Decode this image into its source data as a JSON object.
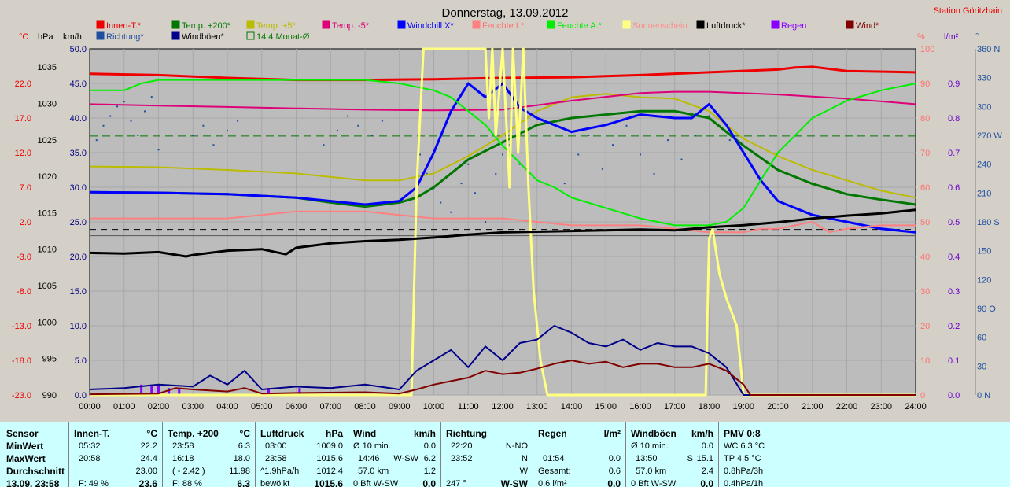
{
  "title": "Donnerstag, 13.09.2012",
  "station": "Station Göritzhain",
  "legend": [
    {
      "label": "Innen-T.*",
      "color": "#ee0000"
    },
    {
      "label": "Temp. +200*",
      "color": "#007700"
    },
    {
      "label": "Temp. +5*",
      "color": "#bbbb00"
    },
    {
      "label": "Temp. -5*",
      "color": "#dd0077"
    },
    {
      "label": "Windchill X*",
      "color": "#0000ff"
    },
    {
      "label": "Feuchte I.*",
      "color": "#ff8080"
    },
    {
      "label": "Feuchte A.*",
      "color": "#00ee00"
    },
    {
      "label": "Sonnenschein",
      "color": "#ffff80"
    },
    {
      "label": "Luftdruck*",
      "color": "#000000"
    },
    {
      "label": "Regen",
      "color": "#8800ff"
    },
    {
      "label": "Wind*",
      "color": "#800000"
    },
    {
      "label": "Richtung*",
      "color": "#1f4f9f"
    },
    {
      "label": "Windböen*",
      "color": "#000088"
    },
    {
      "label": "14.4 Monat-Ø",
      "color": "#007700"
    }
  ],
  "axes_units": {
    "temp": "°C",
    "press": "hPa",
    "wind": "km/h",
    "hum": "%",
    "rain": "l/m²",
    "dir": "°"
  },
  "chart_data": {
    "type": "line",
    "x_ticks": [
      "00:00",
      "01:00",
      "02:00",
      "03:00",
      "04:00",
      "05:00",
      "06:00",
      "07:00",
      "08:00",
      "09:00",
      "10:00",
      "11:00",
      "12:00",
      "13:00",
      "14:00",
      "15:00",
      "16:00",
      "17:00",
      "18:00",
      "19:00",
      "20:00",
      "21:00",
      "22:00",
      "23:00",
      "24:00"
    ],
    "x_range_hours": [
      0,
      24
    ],
    "axes": {
      "temp": {
        "range": [
          -23,
          27
        ],
        "ticks": [
          "22.0",
          "17.0",
          "12.0",
          "7.0",
          "2.0",
          "-3.0",
          "-8.0",
          "-13.0",
          "-18.0",
          "-23.0"
        ]
      },
      "pressure": {
        "range": [
          990,
          1037.5
        ],
        "ticks": [
          "1035",
          "1030",
          "1025",
          "1020",
          "1015",
          "1010",
          "1005",
          "1000",
          "995",
          "990"
        ]
      },
      "wind": {
        "range": [
          0,
          50
        ],
        "ticks": [
          "50.0",
          "45.0",
          "40.0",
          "35.0",
          "30.0",
          "25.0",
          "20.0",
          "15.0",
          "10.0",
          "5.0",
          "0.0"
        ]
      },
      "humidity": {
        "range": [
          0,
          100
        ],
        "ticks": [
          "100",
          "90",
          "80",
          "70",
          "60",
          "50",
          "40",
          "30",
          "20",
          "10",
          "0"
        ]
      },
      "rain": {
        "range": [
          0,
          1.0
        ],
        "ticks": [
          "0.9",
          "0.8",
          "0.7",
          "0.6",
          "0.5",
          "0.4",
          "0.3",
          "0.2",
          "0.1",
          "0.0"
        ]
      },
      "direction": {
        "range": [
          0,
          360
        ],
        "ticks": [
          "360 N",
          "330",
          "300",
          "270 W",
          "240",
          "210",
          "180 S",
          "150",
          "120",
          "90 O",
          "60",
          "30",
          "0 N"
        ]
      }
    },
    "grid": true,
    "reference_lines": [
      {
        "name": "14.4 Monat-Ø",
        "axis": "temp",
        "value": 14.4
      }
    ],
    "series": [
      {
        "name": "Innen-T.*",
        "axis": "temp",
        "color": "#ee0000",
        "x": [
          0,
          2,
          4,
          6,
          8,
          10,
          12,
          14,
          16,
          18,
          20,
          20.5,
          21,
          22,
          24
        ],
        "values": [
          23.4,
          23.2,
          22.8,
          22.5,
          22.5,
          22.6,
          22.8,
          22.9,
          23.2,
          23.6,
          24.0,
          24.3,
          24.4,
          23.8,
          23.6
        ]
      },
      {
        "name": "Temp. +200*",
        "axis": "temp",
        "color": "#007700",
        "x": [
          0,
          2,
          4,
          6,
          7,
          8,
          9,
          9.5,
          10,
          10.5,
          11,
          12,
          13,
          14,
          15,
          16,
          17,
          18,
          19,
          20,
          21,
          22,
          23,
          24
        ],
        "values": [
          6.3,
          6.2,
          6.0,
          5.5,
          4.8,
          4.2,
          4.8,
          5.5,
          7.0,
          9.0,
          11.0,
          13.5,
          16.0,
          17.0,
          17.5,
          18.0,
          18.0,
          17.0,
          13.0,
          9.5,
          7.5,
          6.0,
          5.2,
          4.5
        ]
      },
      {
        "name": "Temp. +5*",
        "axis": "temp",
        "color": "#bbbb00",
        "x": [
          0,
          2,
          4,
          6,
          8,
          9,
          10,
          11,
          12,
          13,
          14,
          15,
          16,
          17,
          18,
          19,
          20,
          21,
          22,
          23,
          24
        ],
        "values": [
          10.0,
          9.9,
          9.5,
          9.0,
          8.0,
          8.0,
          9.0,
          11.5,
          14.5,
          18.0,
          20.0,
          20.5,
          20.0,
          19.8,
          18.0,
          14.0,
          11.5,
          9.5,
          8.0,
          6.5,
          5.5
        ]
      },
      {
        "name": "Temp. -5*",
        "axis": "temp",
        "color": "#dd0077",
        "x": [
          0,
          2,
          4,
          6,
          8,
          10,
          12,
          14,
          16,
          17,
          18,
          20,
          22,
          24
        ],
        "values": [
          19.0,
          18.8,
          18.6,
          18.4,
          18.2,
          18.1,
          18.2,
          19.5,
          20.6,
          20.8,
          20.8,
          20.4,
          19.8,
          19.0
        ]
      },
      {
        "name": "Windchill X*",
        "axis": "temp",
        "color": "#0000ff",
        "x": [
          0,
          2,
          4,
          6,
          8,
          9,
          9.5,
          10,
          10.5,
          11,
          11.5,
          12,
          12.5,
          13,
          14,
          15,
          16,
          17,
          17.5,
          18,
          18.5,
          19,
          19.5,
          20,
          21,
          22,
          23,
          24
        ],
        "values": [
          6.3,
          6.2,
          6.0,
          5.5,
          4.5,
          5.0,
          7.0,
          12.0,
          18.0,
          22.0,
          20.0,
          22.0,
          18.5,
          17.0,
          15.0,
          16.0,
          17.5,
          17.0,
          17.0,
          19.0,
          16.0,
          12.0,
          8.0,
          5.0,
          3.0,
          2.0,
          1.0,
          0.5
        ]
      },
      {
        "name": "Feuchte I.*",
        "axis": "humidity",
        "color": "#ff8080",
        "x": [
          0,
          2,
          4,
          5,
          6,
          7,
          8,
          9,
          10,
          11,
          12,
          13,
          14,
          15,
          16,
          17,
          18,
          19,
          19.5,
          20,
          20.5,
          21,
          21.5,
          22,
          23,
          24
        ],
        "values": [
          51,
          51,
          51,
          52,
          53,
          53,
          53,
          52,
          51,
          51,
          51,
          50,
          49,
          49,
          49,
          48,
          47,
          47,
          48,
          48,
          49,
          50,
          47,
          48,
          49,
          49
        ]
      },
      {
        "name": "Feuchte A.*",
        "axis": "humidity",
        "color": "#00ee00",
        "x": [
          0,
          1,
          1.5,
          2,
          4,
          6,
          8,
          9,
          10,
          10.5,
          11,
          11.5,
          12,
          12.5,
          13,
          13.5,
          14,
          15,
          16,
          17,
          18,
          18.5,
          19,
          19.5,
          20,
          21,
          22,
          23,
          24
        ],
        "values": [
          88,
          88,
          90,
          91,
          91,
          91,
          91,
          90,
          88,
          86,
          82,
          78,
          72,
          67,
          62,
          60,
          57,
          54,
          51,
          49,
          49,
          50,
          54,
          62,
          70,
          80,
          85,
          88,
          90
        ]
      },
      {
        "name": "Sonnenschein",
        "axis": "humidity",
        "color": "#ffff80",
        "x": [
          0,
          9.35,
          9.5,
          9.7,
          11.5,
          11.6,
          11.7,
          11.8,
          12.0,
          12.2,
          12.3,
          12.45,
          12.6,
          12.75,
          12.9,
          13.1,
          13.3,
          17.9,
          18.0,
          18.1,
          18.3,
          18.5,
          18.8,
          19.0,
          24
        ],
        "values": [
          0,
          0,
          60,
          100,
          100,
          80,
          100,
          75,
          100,
          60,
          100,
          70,
          100,
          60,
          30,
          10,
          0,
          0,
          45,
          48,
          35,
          28,
          20,
          0,
          0
        ]
      },
      {
        "name": "Luftdruck*",
        "axis": "pressure",
        "color": "#000000",
        "x": [
          0,
          1,
          2,
          2.8,
          3,
          4,
          5,
          5.7,
          6,
          7,
          8,
          9,
          10,
          11,
          12,
          13,
          14,
          15,
          16,
          17,
          18,
          19,
          20,
          21,
          22,
          23,
          24
        ],
        "values": [
          1009.5,
          1009.4,
          1009.6,
          1009.0,
          1009.2,
          1009.8,
          1010.0,
          1009.3,
          1010.2,
          1010.8,
          1011.1,
          1011.3,
          1011.6,
          1012.0,
          1012.3,
          1012.4,
          1012.5,
          1012.6,
          1012.7,
          1012.6,
          1013.0,
          1013.3,
          1013.7,
          1014.2,
          1014.6,
          1014.9,
          1015.4
        ]
      },
      {
        "name": "Windböen*",
        "axis": "wind",
        "color": "#000088",
        "x": [
          0,
          1,
          2,
          3,
          3.5,
          4,
          4.5,
          5,
          6,
          7,
          8,
          9,
          9.5,
          10,
          10.5,
          11,
          11.5,
          12,
          12.5,
          13,
          13.5,
          14,
          14.5,
          15,
          15.5,
          16,
          16.5,
          17,
          17.5,
          18,
          18.5,
          19,
          24
        ],
        "values": [
          0.8,
          1.0,
          1.5,
          1.2,
          2.8,
          1.5,
          3.5,
          0.8,
          1.2,
          1.0,
          1.5,
          0.8,
          3.5,
          5.0,
          6.5,
          4.0,
          7.0,
          5.0,
          7.5,
          8.0,
          10.0,
          9.0,
          7.5,
          7.0,
          8.0,
          6.5,
          7.5,
          7.0,
          7.0,
          6.0,
          4.0,
          0.0,
          0.0
        ]
      },
      {
        "name": "Wind*",
        "axis": "wind",
        "color": "#800000",
        "x": [
          0,
          2,
          2.5,
          3,
          4,
          4.5,
          5,
          6,
          8,
          9,
          9.5,
          10,
          10.5,
          11,
          11.5,
          12,
          12.5,
          13,
          13.5,
          14,
          14.5,
          15,
          15.5,
          16,
          16.5,
          17,
          17.5,
          18,
          18.5,
          19,
          19.2,
          24
        ],
        "values": [
          0.1,
          0.2,
          1.0,
          0.8,
          0.5,
          1.0,
          0.2,
          0.3,
          0.4,
          0.2,
          0.8,
          1.5,
          2.0,
          2.5,
          3.5,
          3.0,
          3.2,
          3.8,
          4.5,
          5.0,
          4.5,
          4.8,
          4.0,
          4.5,
          4.5,
          4.0,
          4.0,
          4.5,
          3.5,
          1.5,
          0.0,
          0.0
        ]
      }
    ],
    "scatter": {
      "name": "Richtung*",
      "axis": "direction",
      "color": "#1f4f9f",
      "hours": [
        0.2,
        0.4,
        0.6,
        0.8,
        1.0,
        1.2,
        1.4,
        1.6,
        1.8,
        2.0,
        3.0,
        3.3,
        3.6,
        4.0,
        4.3,
        6.8,
        7.2,
        7.5,
        7.8,
        8.2,
        8.5,
        9.6,
        9.8,
        10.0,
        10.2,
        10.5,
        10.8,
        11.0,
        11.2,
        11.5,
        11.8,
        12.0,
        12.2,
        12.5,
        13.8,
        14.2,
        14.5,
        14.9,
        15.2,
        15.6,
        16.0,
        16.4,
        16.8,
        17.2,
        17.6,
        18.0,
        18.3,
        18.6
      ],
      "values": [
        265,
        280,
        290,
        300,
        305,
        285,
        270,
        295,
        310,
        255,
        270,
        280,
        260,
        275,
        285,
        260,
        275,
        290,
        280,
        270,
        285,
        250,
        230,
        215,
        200,
        190,
        220,
        240,
        210,
        180,
        230,
        250,
        260,
        240,
        220,
        250,
        270,
        235,
        260,
        280,
        250,
        230,
        265,
        245,
        270,
        290,
        280,
        265
      ]
    },
    "rain_points": [
      {
        "hour": 1.5,
        "value": 0.03
      },
      {
        "hour": 1.8,
        "value": 0.03
      },
      {
        "hour": 2.0,
        "value": 0.03
      },
      {
        "hour": 2.3,
        "value": 0.02
      },
      {
        "hour": 2.6,
        "value": 0.02
      },
      {
        "hour": 5.2,
        "value": 0.02
      },
      {
        "hour": 6.1,
        "value": 0.02
      }
    ]
  },
  "panel": {
    "sensor": {
      "title": "Sensor",
      "rows": [
        "MinWert",
        "MaxWert",
        "Durchschnitt",
        "13.09. 23:58"
      ]
    },
    "innen": {
      "title": "Innen-T.",
      "unit": "°C",
      "rows": [
        [
          "05:32",
          "22.2"
        ],
        [
          "20:58",
          "24.4"
        ],
        [
          "",
          "23.00"
        ],
        [
          "F: 49 %",
          "23.6"
        ]
      ]
    },
    "temp200": {
      "title": "Temp. +200",
      "unit": "°C",
      "rows": [
        [
          "23:58",
          "6.3"
        ],
        [
          "16:18",
          "18.0"
        ],
        [
          "( - 2.42 )",
          "11.98"
        ],
        [
          "F: 88 %",
          "6.3"
        ]
      ]
    },
    "druck": {
      "title": "Luftdruck",
      "unit": "hPa",
      "rows": [
        [
          "03:00",
          "1009.0"
        ],
        [
          "23:58",
          "1015.6"
        ],
        [
          "^1.9hPa/h",
          "1012.4"
        ],
        [
          "bewölkt",
          "1015.6"
        ]
      ]
    },
    "wind": {
      "title": "Wind",
      "unit": "km/h",
      "rows": [
        [
          "Ø 10 min.",
          "",
          "0.0"
        ],
        [
          "14:46",
          "W-SW",
          "6.2"
        ],
        [
          "57.0 km",
          "",
          "1.2"
        ],
        [
          "0 Bft W-SW",
          "",
          "0.0"
        ]
      ]
    },
    "richtung": {
      "title": "Richtung",
      "unit": "",
      "rows": [
        [
          "22:20",
          "N-NO"
        ],
        [
          "23:52",
          "N"
        ],
        [
          "",
          "W"
        ],
        [
          "247 °",
          "W-SW"
        ]
      ]
    },
    "regen": {
      "title": "Regen",
      "unit": "l/m²",
      "rows": [
        [
          "",
          ""
        ],
        [
          "01:54",
          "0.0"
        ],
        [
          "Gesamt:",
          "0.6"
        ],
        [
          "0.6 l/m²",
          "0.0"
        ]
      ]
    },
    "boeen": {
      "title": "Windböen",
      "unit": "km/h",
      "rows": [
        [
          "Ø 10 min.",
          "",
          "0.0"
        ],
        [
          "13:50",
          "S",
          "15.1"
        ],
        [
          "57.0 km",
          "",
          "2.4"
        ],
        [
          "0 Bft W-SW",
          "",
          "0.0"
        ]
      ]
    },
    "pmv": {
      "title": "PMV 0:8",
      "rows": [
        "WC 6.3 °C",
        "TP 4.5 °C",
        "0.8hPa/3h",
        "0.4hPa/1h"
      ]
    }
  }
}
